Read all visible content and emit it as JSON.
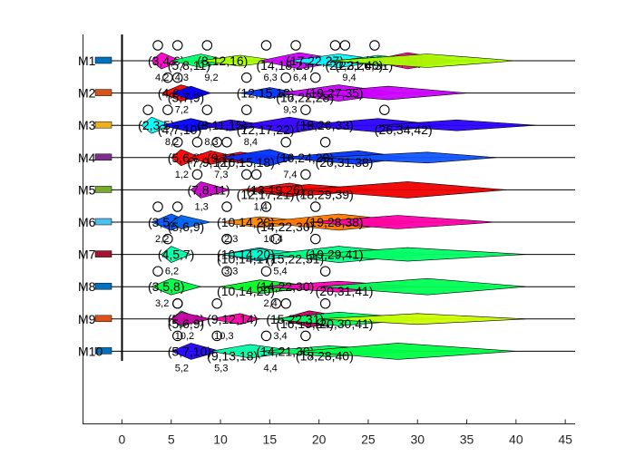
{
  "chart_data": {
    "type": "gantt",
    "title": "",
    "xlabel": "",
    "ylabel": "",
    "xlim": [
      -4,
      46
    ],
    "x_ticks": [
      0,
      5,
      10,
      15,
      20,
      25,
      30,
      35,
      40,
      45
    ],
    "machines": [
      "M1",
      "M2",
      "M3",
      "M4",
      "M5",
      "M6",
      "M7",
      "M8",
      "M9",
      "M10"
    ],
    "machine_colors": [
      "#0072BD",
      "#D95319",
      "#EDB120",
      "#7E2F8E",
      "#77AC30",
      "#4DBEEE",
      "#A2142F",
      "#0072BD",
      "#D95319",
      "#0072BD"
    ],
    "operations": [
      {
        "machine": "M1",
        "color": "#ff00cc",
        "tuple": "(3,4,6)",
        "lo": 3,
        "mid": 4,
        "hi": 6,
        "index": "4,2"
      },
      {
        "machine": "M1",
        "color": "#00ff66",
        "tuple": "(5,8,11)",
        "lo": 5,
        "mid": 8,
        "hi": 11,
        "index": "4,3"
      },
      {
        "machine": "M1",
        "color": "#aaff00",
        "tuple": "(8,12,16)",
        "lo": 8,
        "mid": 12,
        "hi": 16,
        "index": "9,2"
      },
      {
        "machine": "M1",
        "color": "#cc00ff",
        "tuple": "(14,18,23)",
        "lo": 14,
        "mid": 18,
        "hi": 23,
        "index": "6,3"
      },
      {
        "machine": "M1",
        "color": "#00ffff",
        "tuple": "(17,22,27)",
        "lo": 17,
        "mid": 22,
        "hi": 27,
        "index": "6,4"
      },
      {
        "machine": "M1",
        "color": "#00ff99",
        "tuple": "(22,26,31)",
        "lo": 22,
        "mid": 26,
        "hi": 31,
        "index": "9,4"
      },
      {
        "machine": "M1",
        "color": "#ff0099",
        "tuple": "(25,29,34)",
        "lo": 25,
        "mid": 29,
        "hi": 34,
        "index": ""
      },
      {
        "machine": "M1",
        "color": "#aaff00",
        "tuple": "(21,31,40)",
        "lo": 21,
        "mid": 31,
        "hi": 40,
        "index": ""
      },
      {
        "machine": "M2",
        "color": "#ff0000",
        "tuple": "(4,6,9)",
        "lo": 4,
        "mid": 6,
        "hi": 9,
        "index": ""
      },
      {
        "machine": "M2",
        "color": "#0000ff",
        "tuple": "(5,7,9)",
        "lo": 5,
        "mid": 7,
        "hi": 9,
        "index": "7,2"
      },
      {
        "machine": "M2",
        "color": "#0033ff",
        "tuple": "(12,15,18)",
        "lo": 12,
        "mid": 15,
        "hi": 18,
        "index": ""
      },
      {
        "machine": "M2",
        "color": "#cc00ff",
        "tuple": "(16,22,28)",
        "lo": 16,
        "mid": 22,
        "hi": 28,
        "index": "9,3"
      },
      {
        "machine": "M2",
        "color": "#cc00ff",
        "tuple": "(19,27,35)",
        "lo": 19,
        "mid": 27,
        "hi": 35,
        "index": ""
      },
      {
        "machine": "M3",
        "color": "#00ffff",
        "tuple": "(2,3,5)",
        "lo": 2,
        "mid": 3,
        "hi": 5,
        "index": ""
      },
      {
        "machine": "M3",
        "color": "#0000ff",
        "tuple": "(4,7,10)",
        "lo": 4,
        "mid": 7,
        "hi": 10,
        "index": "8,2"
      },
      {
        "machine": "M3",
        "color": "#2200ee",
        "tuple": "(8,11,15)",
        "lo": 8,
        "mid": 11,
        "hi": 15,
        "index": "8,3"
      },
      {
        "machine": "M3",
        "color": "#3300ff",
        "tuple": "(12,17,22)",
        "lo": 12,
        "mid": 17,
        "hi": 22,
        "index": "8,4"
      },
      {
        "machine": "M3",
        "color": "#2a00ff",
        "tuple": "(18,26,33)",
        "lo": 18,
        "mid": 26,
        "hi": 33,
        "index": ""
      },
      {
        "machine": "M3",
        "color": "#2a00ff",
        "tuple": "(26,34,42)",
        "lo": 26,
        "mid": 34,
        "hi": 42,
        "index": ""
      },
      {
        "machine": "M4",
        "color": "#ff0000",
        "tuple": "(5,6,8)",
        "lo": 5,
        "mid": 6,
        "hi": 8,
        "index": "1,2"
      },
      {
        "machine": "M4",
        "color": "#ff0000",
        "tuple": "(7,9,12)",
        "lo": 7,
        "mid": 9,
        "hi": 12,
        "index": ""
      },
      {
        "machine": "M4",
        "color": "#ff0022",
        "tuple": "(9,12,17)",
        "lo": 9,
        "mid": 12,
        "hi": 17,
        "index": "7,3"
      },
      {
        "machine": "M4",
        "color": "#0033ff",
        "tuple": "(10,15,18)",
        "lo": 10,
        "mid": 15,
        "hi": 18,
        "index": ""
      },
      {
        "machine": "M4",
        "color": "#0033ff",
        "tuple": "(16,24,29)",
        "lo": 16,
        "mid": 24,
        "hi": 29,
        "index": "7,4"
      },
      {
        "machine": "M4",
        "color": "#1155ff",
        "tuple": "(20,31,38)",
        "lo": 20,
        "mid": 31,
        "hi": 38,
        "index": ""
      },
      {
        "machine": "M5",
        "color": "#cc00cc",
        "tuple": "(7,8,11)",
        "lo": 7,
        "mid": 8,
        "hi": 11,
        "index": "1,3"
      },
      {
        "machine": "M5",
        "color": "#ee1111",
        "tuple": "(12,17,21)",
        "lo": 12,
        "mid": 17,
        "hi": 21,
        "index": ""
      },
      {
        "machine": "M5",
        "color": "#ff0000",
        "tuple": "(13,19,26)",
        "lo": 13,
        "mid": 19,
        "hi": 26,
        "index": "1,4"
      },
      {
        "machine": "M5",
        "color": "#ee0000",
        "tuple": "(18,29,39)",
        "lo": 18,
        "mid": 29,
        "hi": 39,
        "index": ""
      },
      {
        "machine": "M6",
        "color": "#0055ff",
        "tuple": "(3,5,7)",
        "lo": 3,
        "mid": 5,
        "hi": 7,
        "index": "2,2"
      },
      {
        "machine": "M6",
        "color": "#0066ee",
        "tuple": "(5,6,9)",
        "lo": 5,
        "mid": 6,
        "hi": 9,
        "index": ""
      },
      {
        "machine": "M6",
        "color": "#ff8800",
        "tuple": "(10,14,20)",
        "lo": 10,
        "mid": 14,
        "hi": 20,
        "index": "2,3"
      },
      {
        "machine": "M6",
        "color": "#ff7700",
        "tuple": "(14,22,30)",
        "lo": 14,
        "mid": 22,
        "hi": 30,
        "index": "10,4"
      },
      {
        "machine": "M6",
        "color": "#ff00aa",
        "tuple": "(19,28,38)",
        "lo": 19,
        "mid": 28,
        "hi": 38,
        "index": ""
      },
      {
        "machine": "M7",
        "color": "#00ffaa",
        "tuple": "(4,5,7)",
        "lo": 4,
        "mid": 5,
        "hi": 7,
        "index": "6,2"
      },
      {
        "machine": "M7",
        "color": "#00ccff",
        "tuple": "(10,14,17)",
        "lo": 10,
        "mid": 14,
        "hi": 17,
        "index": ""
      },
      {
        "machine": "M7",
        "color": "#00ffcc",
        "tuple": "(10,14,20)",
        "lo": 10,
        "mid": 14,
        "hi": 20,
        "index": "3,3"
      },
      {
        "machine": "M7",
        "color": "#00ff88",
        "tuple": "(15,22,31)",
        "lo": 15,
        "mid": 22,
        "hi": 31,
        "index": "5,4"
      },
      {
        "machine": "M7",
        "color": "#00ff66",
        "tuple": "(19,29,41)",
        "lo": 19,
        "mid": 29,
        "hi": 41,
        "index": ""
      },
      {
        "machine": "M8",
        "color": "#00ff44",
        "tuple": "(3,5,8)",
        "lo": 3,
        "mid": 5,
        "hi": 8,
        "index": "3,2"
      },
      {
        "machine": "M8",
        "color": "#00ff22",
        "tuple": "(10,14,20)",
        "lo": 10,
        "mid": 14,
        "hi": 20,
        "index": ""
      },
      {
        "machine": "M8",
        "color": "#ff00bb",
        "tuple": "(14,22,30)",
        "lo": 14,
        "mid": 22,
        "hi": 30,
        "index": "2,4"
      },
      {
        "machine": "M8",
        "color": "#00ff55",
        "tuple": "(20,31,41)",
        "lo": 20,
        "mid": 31,
        "hi": 41,
        "index": ""
      },
      {
        "machine": "M9",
        "color": "#00ff33",
        "tuple": "(5,6,8)",
        "lo": 5,
        "mid": 6,
        "hi": 8,
        "index": ""
      },
      {
        "machine": "M9",
        "color": "#cc00aa",
        "tuple": "(5,6,9)",
        "lo": 5,
        "mid": 6,
        "hi": 9,
        "index": "10,2"
      },
      {
        "machine": "M9",
        "color": "#ff00aa",
        "tuple": "(9,12,14)",
        "lo": 9,
        "mid": 12,
        "hi": 14,
        "index": "10,3"
      },
      {
        "machine": "M9",
        "color": "#cc0066",
        "tuple": "(16,19,24)",
        "lo": 16,
        "mid": 19,
        "hi": 24,
        "index": ""
      },
      {
        "machine": "M9",
        "color": "#00ff66",
        "tuple": "(15,22,31)",
        "lo": 15,
        "mid": 22,
        "hi": 31,
        "index": "3,4"
      },
      {
        "machine": "M9",
        "color": "#ccff00",
        "tuple": "(20,30,41)",
        "lo": 20,
        "mid": 30,
        "hi": 41,
        "index": ""
      },
      {
        "machine": "M10",
        "color": "#2200ff",
        "tuple": "(5,7,10)",
        "lo": 5,
        "mid": 7,
        "hi": 10,
        "index": "5,2"
      },
      {
        "machine": "M10",
        "color": "#00ffaa",
        "tuple": "(9,13,18)",
        "lo": 9,
        "mid": 13,
        "hi": 18,
        "index": "5,3"
      },
      {
        "machine": "M10",
        "color": "#00ff66",
        "tuple": "(14,21,30)",
        "lo": 14,
        "mid": 21,
        "hi": 30,
        "index": "4,4"
      },
      {
        "machine": "M10",
        "color": "#00ff44",
        "tuple": "(18,28,40)",
        "lo": 18,
        "mid": 28,
        "hi": 40,
        "index": ""
      }
    ]
  }
}
